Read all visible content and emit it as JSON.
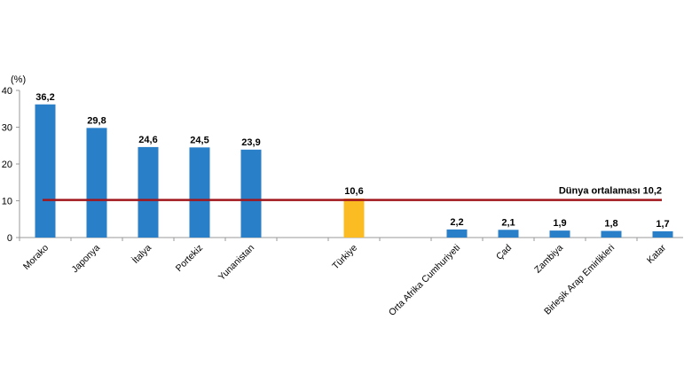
{
  "chart_data": {
    "type": "bar",
    "unit_label": "(%)",
    "categories": [
      "Morako",
      "Japonya",
      "İtalya",
      "Portekiz",
      "Yunanistan",
      "",
      "Türkiye",
      "",
      "Orta Afrika Cumhuriyeti",
      "Çad",
      "Zambiya",
      "Birleşik Arap Emirlikleri",
      "Katar"
    ],
    "values": [
      36.2,
      29.8,
      24.6,
      24.5,
      23.9,
      null,
      10.6,
      null,
      2.2,
      2.1,
      1.9,
      1.8,
      1.7
    ],
    "value_labels": [
      "36,2",
      "29,8",
      "24,6",
      "24,5",
      "23,9",
      "",
      "10,6",
      "",
      "2,2",
      "2,1",
      "1,9",
      "1,8",
      "1,7"
    ],
    "highlight_category": "Türkiye",
    "ylim": [
      0,
      40
    ],
    "yticks": [
      0,
      10,
      20,
      30,
      40
    ],
    "reference_line": {
      "label": "Dünya ortalaması  10,2",
      "value": 10.2,
      "color": "#a0161c"
    },
    "colors": {
      "bar": "#2a7fc9",
      "highlight": "#fbbb22",
      "axis": "#9a9a9a"
    },
    "grid": false,
    "legend": "none"
  }
}
